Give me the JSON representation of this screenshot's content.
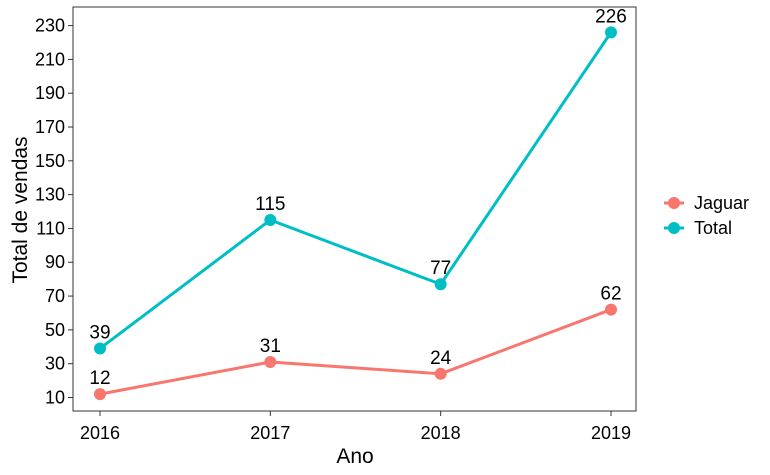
{
  "chart_data": {
    "type": "line",
    "x": [
      "2016",
      "2017",
      "2018",
      "2019"
    ],
    "series": [
      {
        "name": "Jaguar",
        "values": [
          12,
          31,
          24,
          62
        ],
        "color": "#F8766D"
      },
      {
        "name": "Total",
        "values": [
          39,
          115,
          77,
          226
        ],
        "color": "#00BFC4"
      }
    ],
    "data_labels": true,
    "xlabel": "Ano",
    "ylabel": "Total de vendas",
    "ylim": [
      2,
      241
    ],
    "yticks": [
      10,
      30,
      50,
      70,
      90,
      110,
      130,
      150,
      170,
      190,
      210,
      230
    ],
    "grid": false,
    "legend": "right"
  }
}
